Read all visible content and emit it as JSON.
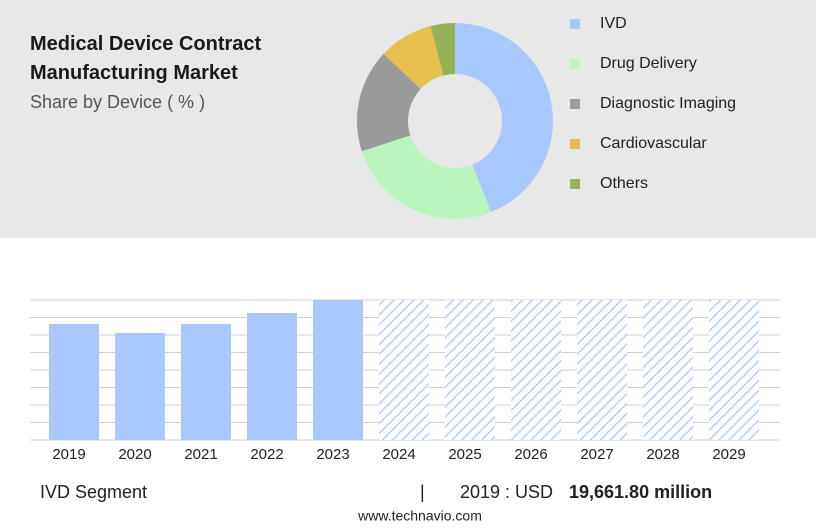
{
  "chart_data": [
    {
      "type": "pie",
      "title": "Medical Device Contract Manufacturing Market",
      "subtitle": "Share by Device ( % )",
      "categories": [
        "IVD",
        "Drug Delivery",
        "Diagnostic Imaging",
        "Cardiovascular",
        "Others"
      ],
      "values": [
        44,
        26,
        17,
        9,
        4
      ],
      "colors": [
        "#a9c8fd",
        "#b9f5bd",
        "#9b9b9b",
        "#e6bf4e",
        "#93b356"
      ]
    },
    {
      "type": "bar",
      "categories": [
        "2019",
        "2020",
        "2021",
        "2022",
        "2023",
        "2024",
        "2025",
        "2026",
        "2027",
        "2028",
        "2029"
      ],
      "values": [
        19661.8,
        18136,
        19662,
        21526,
        23730,
        null,
        null,
        null,
        null,
        null,
        null
      ],
      "color": "#a9c8fd"
    }
  ],
  "footer": {
    "segment": "IVD Segment",
    "separator": "|",
    "year_label": "2019 : USD",
    "value_label": "19,661.80 million",
    "source": "www.technavio.com"
  }
}
